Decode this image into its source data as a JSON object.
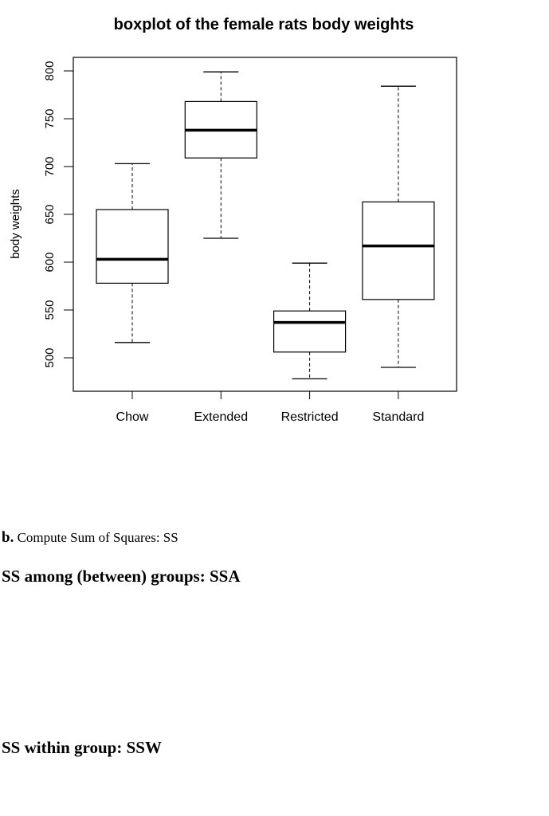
{
  "chart_data": {
    "type": "boxplot",
    "title": "boxplot of the female rats body weights",
    "xlabel": "",
    "ylabel": "body weights",
    "ylim": [
      465,
      812
    ],
    "yticks": [
      500,
      550,
      600,
      650,
      700,
      750,
      800
    ],
    "grid": false,
    "categories": [
      "Chow",
      "Extended",
      "Restricted",
      "Standard"
    ],
    "boxes": [
      {
        "name": "Chow",
        "min": 516,
        "q1": 578,
        "median": 603,
        "q3": 655,
        "max": 703
      },
      {
        "name": "Extended",
        "min": 625,
        "q1": 709,
        "median": 738,
        "q3": 768,
        "max": 799
      },
      {
        "name": "Restricted",
        "min": 478,
        "q1": 506,
        "median": 537,
        "q3": 549,
        "max": 599
      },
      {
        "name": "Standard",
        "min": 490,
        "q1": 561,
        "median": 617,
        "q3": 663,
        "max": 784
      }
    ]
  },
  "document": {
    "part_b_label": "b.",
    "part_b_text": "Compute Sum of Squares: SS",
    "ssa_heading": "SS among (between) groups: SSA",
    "ssw_heading": "SS within group: SSW"
  }
}
